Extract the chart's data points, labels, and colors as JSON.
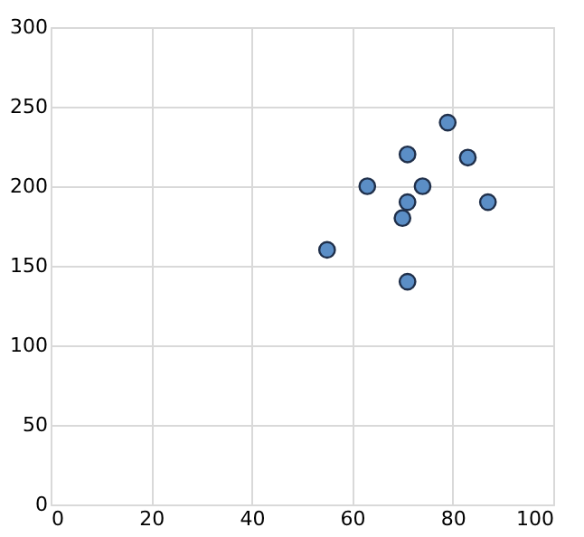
{
  "chart_data": {
    "type": "scatter",
    "x": [
      55,
      63,
      70,
      71,
      71,
      71,
      74,
      79,
      83,
      87
    ],
    "series": [
      {
        "color": "#5b8ec6",
        "values": [
          160,
          200,
          180,
          220,
          190,
          140,
          200,
          240,
          218,
          190
        ]
      }
    ],
    "xlim": [
      0,
      100
    ],
    "xticks": [
      0,
      20,
      40,
      60,
      80,
      100
    ],
    "ylim": [
      0,
      300
    ],
    "yticks": [
      0,
      50,
      100,
      150,
      200,
      250,
      300
    ],
    "grid": true,
    "marker": "circle"
  }
}
